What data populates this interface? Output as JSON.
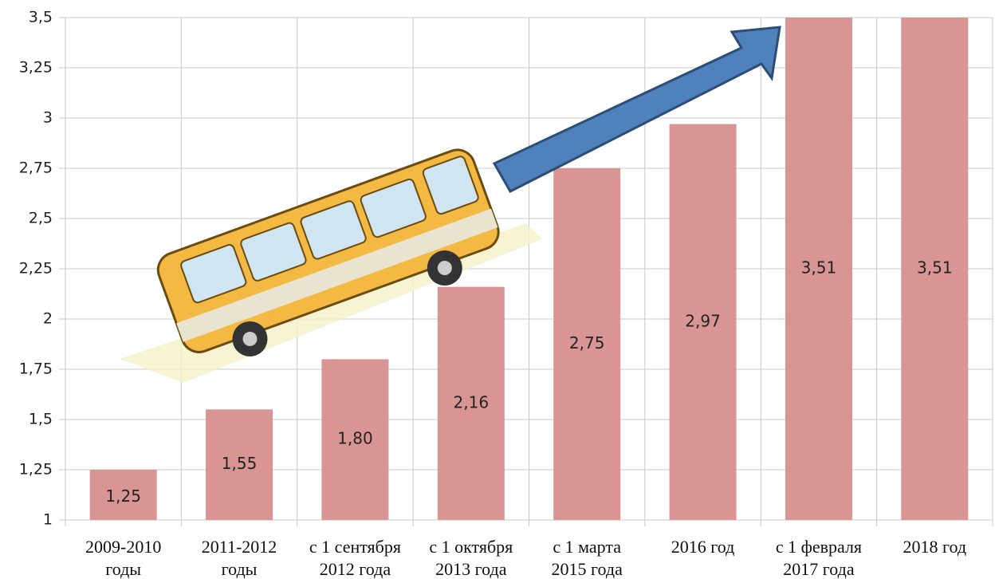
{
  "chart_data": {
    "type": "bar",
    "categories": [
      [
        "2009-2010",
        "годы"
      ],
      [
        "2011-2012",
        "годы"
      ],
      [
        "с 1 сентября",
        "2012 года"
      ],
      [
        "с 1 октября",
        "2013 года"
      ],
      [
        "с 1 марта",
        "2015 года"
      ],
      [
        "2016 год"
      ],
      [
        "с 1 февраля",
        "2017 года"
      ],
      [
        "2018 год"
      ]
    ],
    "values": [
      1.25,
      1.55,
      1.8,
      2.16,
      2.75,
      2.97,
      3.51,
      3.51
    ],
    "value_labels": [
      "1,25",
      "1,55",
      "1,80",
      "2,16",
      "2,75",
      "2,97",
      "3,51",
      "3,51"
    ],
    "color": "#d99594",
    "ylim": [
      1,
      3.5
    ],
    "yticks": [
      1,
      {
        "value": 1.25,
        "label": "1,25"
      },
      {
        "value": 1.5,
        "label": "1,5"
      },
      {
        "value": 1.75,
        "label": "1,75"
      },
      2,
      {
        "value": 2.25,
        "label": "2,25"
      },
      {
        "value": 2.5,
        "label": "2,5"
      },
      {
        "value": 2.75,
        "label": "2,75"
      },
      3,
      {
        "value": 3.25,
        "label": "3,25"
      },
      {
        "value": 3.5,
        "label": "3,5"
      }
    ],
    "grid": true
  }
}
